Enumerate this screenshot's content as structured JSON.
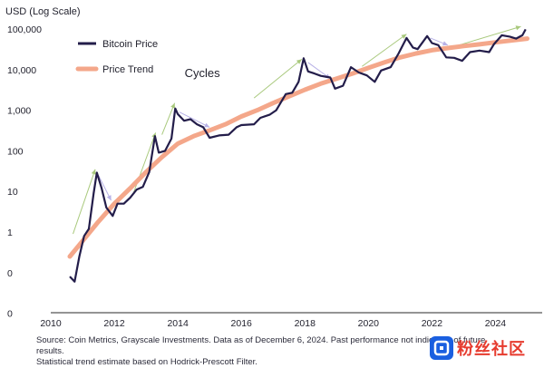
{
  "chart_data": {
    "type": "line",
    "ylabel": "USD (Log Scale)",
    "y_scale": "log",
    "x_ticks": [
      "2010",
      "2012",
      "2014",
      "2016",
      "2018",
      "2020",
      "2022",
      "2024"
    ],
    "y_tick_labels": [
      "100,000",
      "10,000",
      "1,000",
      "100",
      "10",
      "1",
      "0",
      "0"
    ],
    "xlim": [
      2010,
      2025.1
    ],
    "grid": false,
    "legend_placement": "top-left",
    "series": [
      {
        "name": "Bitcoin Price",
        "color": "#231d4a",
        "points": [
          [
            2010.6,
            0.08
          ],
          [
            2010.75,
            0.06
          ],
          [
            2010.9,
            0.25
          ],
          [
            2011.05,
            0.8
          ],
          [
            2011.2,
            1.2
          ],
          [
            2011.35,
            9
          ],
          [
            2011.45,
            29
          ],
          [
            2011.6,
            12
          ],
          [
            2011.75,
            4
          ],
          [
            2011.95,
            2.5
          ],
          [
            2012.1,
            5
          ],
          [
            2012.3,
            5
          ],
          [
            2012.5,
            7
          ],
          [
            2012.7,
            11
          ],
          [
            2012.9,
            13
          ],
          [
            2013.1,
            30
          ],
          [
            2013.28,
            230
          ],
          [
            2013.4,
            90
          ],
          [
            2013.6,
            100
          ],
          [
            2013.8,
            200
          ],
          [
            2013.92,
            1100
          ],
          [
            2014.0,
            800
          ],
          [
            2014.2,
            550
          ],
          [
            2014.4,
            600
          ],
          [
            2014.6,
            450
          ],
          [
            2014.8,
            380
          ],
          [
            2015.0,
            210
          ],
          [
            2015.3,
            240
          ],
          [
            2015.6,
            250
          ],
          [
            2015.85,
            380
          ],
          [
            2016.0,
            430
          ],
          [
            2016.4,
            450
          ],
          [
            2016.6,
            650
          ],
          [
            2016.9,
            780
          ],
          [
            2017.1,
            1000
          ],
          [
            2017.4,
            2500
          ],
          [
            2017.6,
            2700
          ],
          [
            2017.8,
            5000
          ],
          [
            2017.96,
            19000
          ],
          [
            2018.1,
            9000
          ],
          [
            2018.3,
            8000
          ],
          [
            2018.5,
            7000
          ],
          [
            2018.8,
            6400
          ],
          [
            2018.95,
            3400
          ],
          [
            2019.2,
            4000
          ],
          [
            2019.45,
            11500
          ],
          [
            2019.7,
            8500
          ],
          [
            2019.95,
            7200
          ],
          [
            2020.2,
            5000
          ],
          [
            2020.4,
            9500
          ],
          [
            2020.7,
            11500
          ],
          [
            2020.95,
            25000
          ],
          [
            2021.2,
            60000
          ],
          [
            2021.4,
            35000
          ],
          [
            2021.55,
            32000
          ],
          [
            2021.85,
            67000
          ],
          [
            2022.0,
            45000
          ],
          [
            2022.2,
            40000
          ],
          [
            2022.45,
            20000
          ],
          [
            2022.7,
            19500
          ],
          [
            2022.95,
            16500
          ],
          [
            2023.2,
            27000
          ],
          [
            2023.5,
            29500
          ],
          [
            2023.8,
            27000
          ],
          [
            2023.95,
            42000
          ],
          [
            2024.2,
            70000
          ],
          [
            2024.45,
            65000
          ],
          [
            2024.65,
            58000
          ],
          [
            2024.85,
            70000
          ],
          [
            2024.95,
            98000
          ]
        ]
      },
      {
        "name": "Price Trend",
        "color": "#f4a78a",
        "points": [
          [
            2010.6,
            0.25
          ],
          [
            2011.0,
            0.6
          ],
          [
            2011.5,
            1.8
          ],
          [
            2012.0,
            5
          ],
          [
            2012.5,
            12
          ],
          [
            2013.0,
            30
          ],
          [
            2013.5,
            70
          ],
          [
            2014.0,
            150
          ],
          [
            2014.5,
            230
          ],
          [
            2015.0,
            320
          ],
          [
            2015.5,
            450
          ],
          [
            2016.0,
            700
          ],
          [
            2016.5,
            1000
          ],
          [
            2017.0,
            1500
          ],
          [
            2017.5,
            2200
          ],
          [
            2018.0,
            3200
          ],
          [
            2018.5,
            4500
          ],
          [
            2019.0,
            6000
          ],
          [
            2019.5,
            8000
          ],
          [
            2020.0,
            11000
          ],
          [
            2020.5,
            15000
          ],
          [
            2021.0,
            20000
          ],
          [
            2021.5,
            25000
          ],
          [
            2022.0,
            30000
          ],
          [
            2022.5,
            34000
          ],
          [
            2023.0,
            38000
          ],
          [
            2023.5,
            42000
          ],
          [
            2024.0,
            47000
          ],
          [
            2024.5,
            52000
          ],
          [
            2025.0,
            58000
          ]
        ]
      }
    ],
    "annotations": [
      {
        "text": "Cycles",
        "x": 2012.5,
        "y": 10000
      }
    ],
    "cycle_arrows": {
      "up_color": "#a9c97d",
      "down_color": "#b7b1e6",
      "up": [
        [
          2010.7,
          0.9,
          2011.4,
          35
        ],
        [
          2012.6,
          9,
          2013.3,
          280
        ],
        [
          2013.5,
          250,
          2013.9,
          1500
        ],
        [
          2016.4,
          2000,
          2017.9,
          18000
        ],
        [
          2019.8,
          12000,
          2021.2,
          75000
        ],
        [
          2022.6,
          35000,
          2024.8,
          115000
        ]
      ],
      "down": [
        [
          2011.5,
          25,
          2011.9,
          6
        ],
        [
          2014.05,
          900,
          2015.0,
          380
        ],
        [
          2018.1,
          15000,
          2018.8,
          6000
        ],
        [
          2021.95,
          60000,
          2022.5,
          40000
        ]
      ]
    }
  },
  "source_text": "Source: Coin Metrics, Grayscale Investments. Data as of December 6, 2024. Past performance not indicative of future results.\nStatistical trend estimate based on Hodrick-Prescott Filter.",
  "watermark": {
    "text": "粉丝社区"
  }
}
